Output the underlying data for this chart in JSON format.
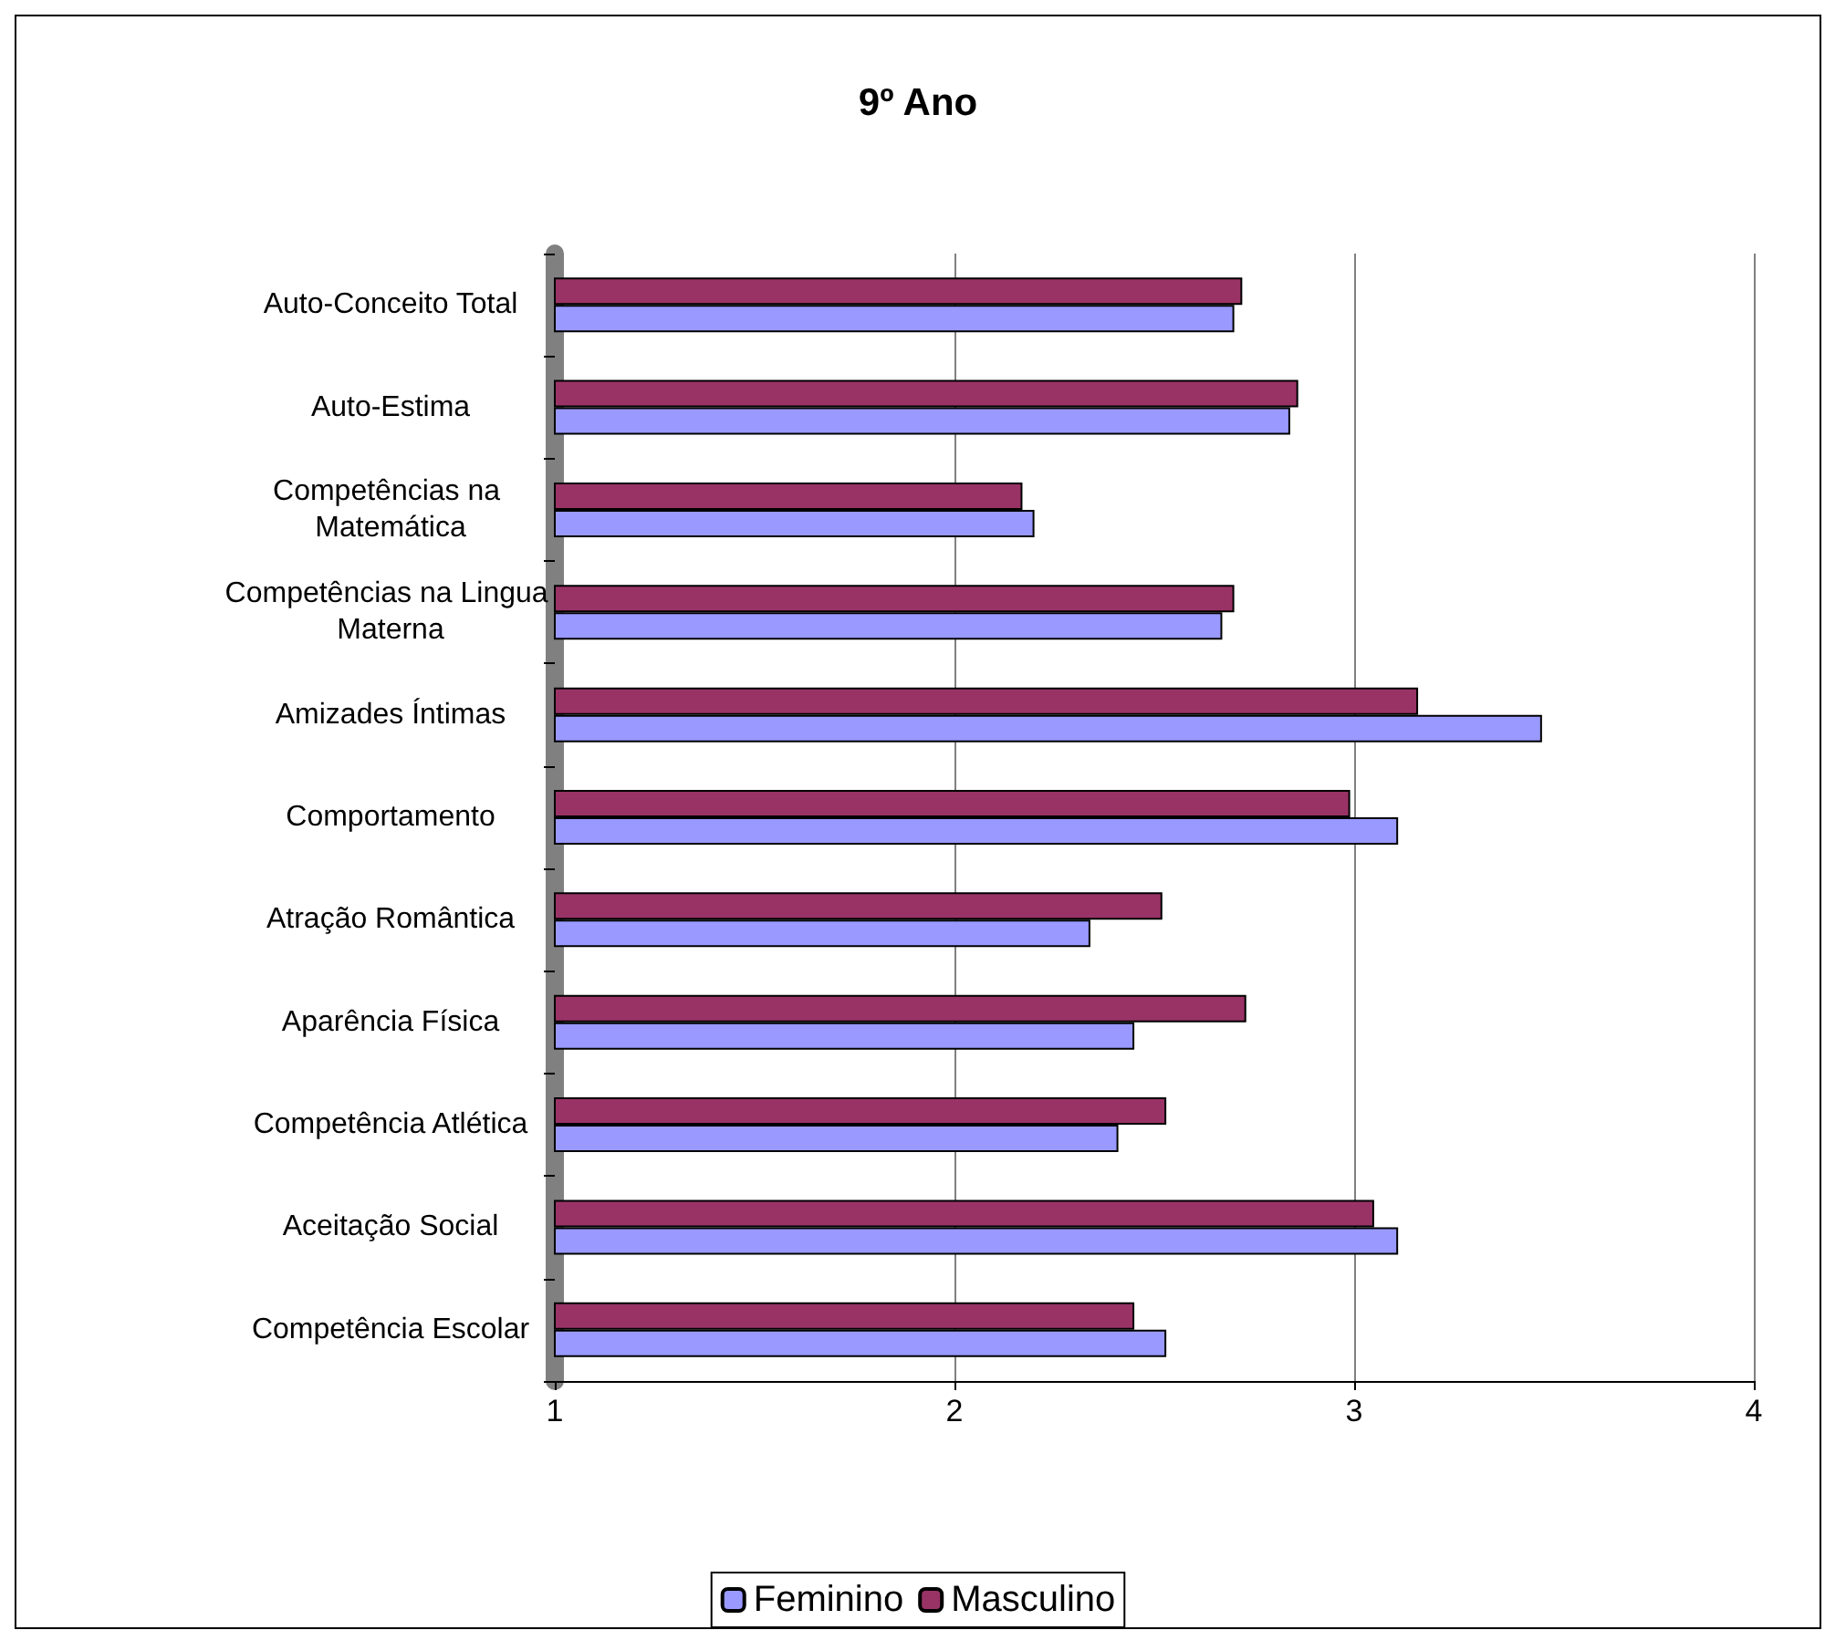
{
  "chart_data": {
    "type": "bar",
    "title": "9º Ano",
    "orientation": "horizontal",
    "categories": [
      "Auto-Conceito Total",
      "Auto-Estima",
      "Competências na Matemática",
      "Competências na Lingua Materna",
      "Amizades Íntimas",
      "Comportamento",
      "Atração Romântica",
      "Aparência Física",
      "Competência Atlética",
      "Aceitação Social",
      "Competência Escolar"
    ],
    "series": [
      {
        "name": "Feminino",
        "color": "#9999ff",
        "values": [
          2.7,
          2.84,
          2.2,
          2.67,
          3.47,
          3.11,
          2.34,
          2.45,
          2.41,
          3.11,
          2.53
        ]
      },
      {
        "name": "Masculino",
        "color": "#993366",
        "values": [
          2.72,
          2.86,
          2.17,
          2.7,
          3.16,
          2.99,
          2.52,
          2.73,
          2.53,
          3.05,
          2.45
        ]
      }
    ],
    "xlim": [
      1,
      4
    ],
    "xticks": [
      1,
      2,
      3,
      4
    ],
    "grid": "x",
    "legend": "bottom"
  }
}
